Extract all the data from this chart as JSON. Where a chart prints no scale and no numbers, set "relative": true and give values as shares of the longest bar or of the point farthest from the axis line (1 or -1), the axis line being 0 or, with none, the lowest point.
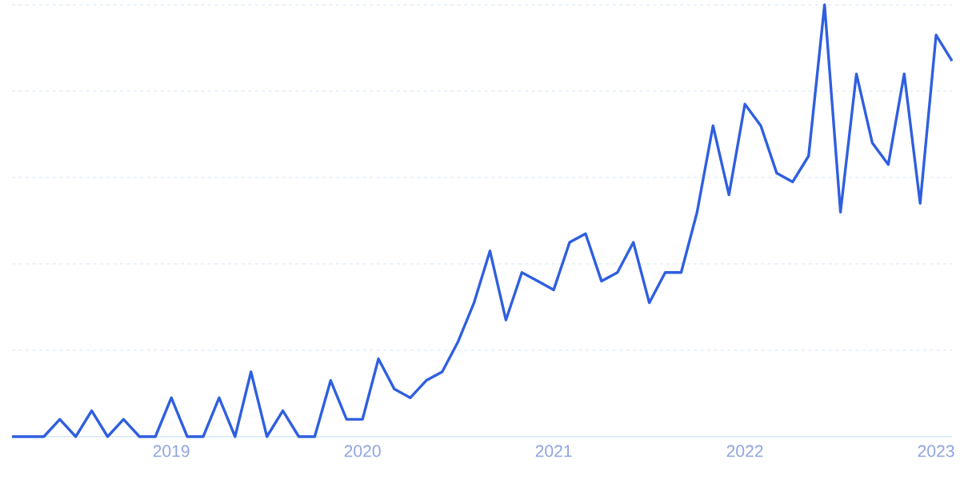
{
  "chart_data": {
    "type": "line",
    "relative": true,
    "grid": "y",
    "marker": "none",
    "line_style": "solid",
    "x": [
      "2018-03",
      "2018-04",
      "2018-05",
      "2018-06",
      "2018-07",
      "2018-08",
      "2018-09",
      "2018-10",
      "2018-11",
      "2018-12",
      "2019-01",
      "2019-02",
      "2019-03",
      "2019-04",
      "2019-05",
      "2019-06",
      "2019-07",
      "2019-08",
      "2019-09",
      "2019-10",
      "2019-11",
      "2019-12",
      "2020-01",
      "2020-02",
      "2020-03",
      "2020-04",
      "2020-05",
      "2020-06",
      "2020-07",
      "2020-08",
      "2020-09",
      "2020-10",
      "2020-11",
      "2020-12",
      "2021-01",
      "2021-02",
      "2021-03",
      "2021-04",
      "2021-05",
      "2021-06",
      "2021-07",
      "2021-08",
      "2021-09",
      "2021-10",
      "2021-11",
      "2021-12",
      "2022-01",
      "2022-02",
      "2022-03",
      "2022-04",
      "2022-05",
      "2022-06",
      "2022-07",
      "2022-08",
      "2022-09",
      "2022-10",
      "2022-11",
      "2022-12",
      "2023-01",
      "2023-02"
    ],
    "xlim": [
      "2018-03",
      "2023-02"
    ],
    "xticks": [
      {
        "value": "2019-01",
        "label": "2019"
      },
      {
        "value": "2020-01",
        "label": "2020"
      },
      {
        "value": "2021-01",
        "label": "2021"
      },
      {
        "value": "2022-01",
        "label": "2022"
      },
      {
        "value": "2023-01",
        "label": "2023"
      }
    ],
    "series": [
      {
        "color": "#2f5fe0",
        "values": [
          0,
          0,
          0,
          0.04,
          0,
          0.06,
          0,
          0.04,
          0,
          0,
          0.09,
          0,
          0,
          0.09,
          0,
          0.15,
          0,
          0.06,
          0,
          0,
          0.13,
          0.04,
          0.04,
          0.18,
          0.11,
          0.09,
          0.13,
          0.15,
          0.22,
          0.31,
          0.43,
          0.27,
          0.38,
          0.36,
          0.34,
          0.45,
          0.47,
          0.36,
          0.38,
          0.45,
          0.31,
          0.38,
          0.38,
          0.52,
          0.72,
          0.56,
          0.77,
          0.72,
          0.61,
          0.59,
          0.65,
          1,
          0.52,
          0.84,
          0.68,
          0.63,
          0.84,
          0.54,
          0.93,
          0.87
        ]
      }
    ]
  }
}
